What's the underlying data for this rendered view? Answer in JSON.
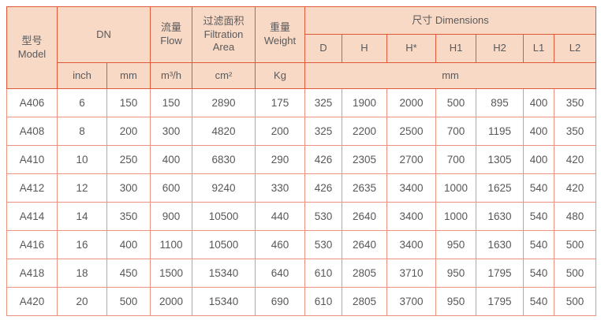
{
  "table": {
    "header": {
      "model_zh": "型号",
      "model_en": "Model",
      "dn": "DN",
      "flow_zh": "流量",
      "flow_en": "Flow",
      "filtration_zh": "过滤面积",
      "filtration_en": "Filtration Area",
      "weight_zh": "重量",
      "weight_en": "Weight",
      "dimensions": "尺寸 Dimensions",
      "dim_cols": [
        "D",
        "H",
        "H*",
        "H1",
        "H2",
        "L1",
        "L2"
      ],
      "units": {
        "inch": "inch",
        "mm": "mm",
        "flow": "m³/h",
        "area": "cm²",
        "weight": "Kg",
        "dims_mm": "mm"
      }
    },
    "rows": [
      [
        "A406",
        "6",
        "150",
        "150",
        "2890",
        "175",
        "325",
        "1900",
        "2000",
        "500",
        "895",
        "400",
        "350"
      ],
      [
        "A408",
        "8",
        "200",
        "300",
        "4820",
        "200",
        "325",
        "2200",
        "2500",
        "700",
        "1195",
        "400",
        "350"
      ],
      [
        "A410",
        "10",
        "250",
        "400",
        "6830",
        "290",
        "426",
        "2305",
        "2700",
        "700",
        "1305",
        "400",
        "420"
      ],
      [
        "A412",
        "12",
        "300",
        "600",
        "9240",
        "330",
        "426",
        "2635",
        "3400",
        "1000",
        "1625",
        "540",
        "420"
      ],
      [
        "A414",
        "14",
        "350",
        "900",
        "10500",
        "440",
        "530",
        "2640",
        "3400",
        "1000",
        "1630",
        "540",
        "480"
      ],
      [
        "A416",
        "16",
        "400",
        "1100",
        "10500",
        "460",
        "530",
        "2640",
        "3400",
        "950",
        "1630",
        "540",
        "500"
      ],
      [
        "A418",
        "18",
        "450",
        "1500",
        "15340",
        "640",
        "610",
        "2805",
        "3710",
        "950",
        "1795",
        "540",
        "500"
      ],
      [
        "A420",
        "20",
        "500",
        "2000",
        "15340",
        "690",
        "610",
        "2805",
        "3700",
        "950",
        "1795",
        "540",
        "500"
      ]
    ]
  },
  "colors": {
    "header_bg": "#f7d9c6",
    "header_border": "#e0583a",
    "grid_border": "#ee9183",
    "text": "#595757"
  }
}
